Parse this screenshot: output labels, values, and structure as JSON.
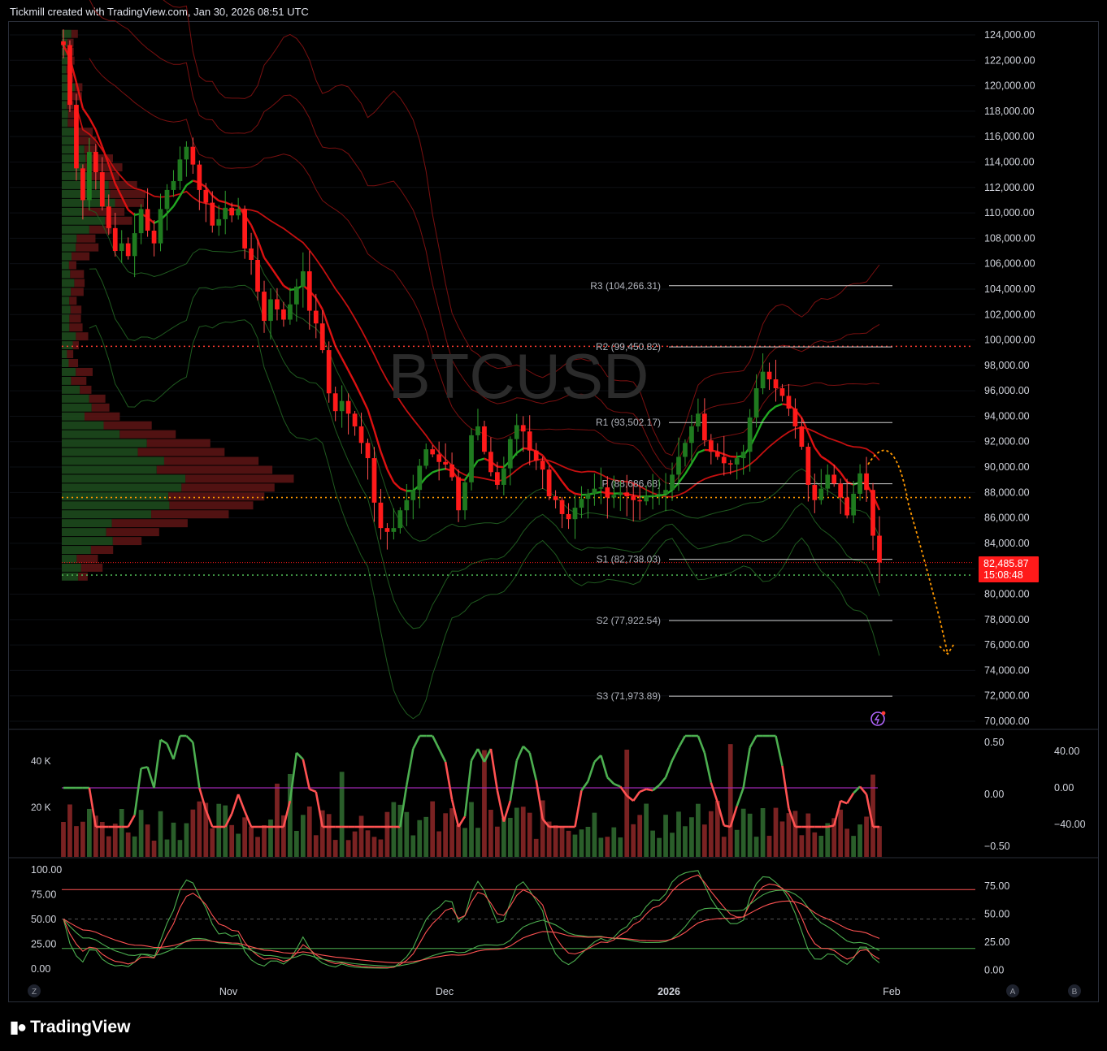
{
  "header": {
    "text": "Tickmill created with TradingView.com, Jan 30, 2026 08:51 UTC"
  },
  "footer": {
    "brand": "TradingView",
    "icon": "tradingview-logo-icon"
  },
  "watermark": "BTCUSD",
  "colors": {
    "up": "#1f7a1f",
    "down": "#ff1a1a",
    "background": "#000000",
    "grid": "#1e222d",
    "axis_text": "#d1d4dc",
    "pivot_line": "#cfcfcf",
    "resistance_dotted": "#ff3b30",
    "poc_dotted": "#ff9800",
    "support_dotted": "#4caf50",
    "forecast_arrow": "#ff9800"
  },
  "chart_data": [
    {
      "type": "candlestick",
      "symbol": "BTCUSD",
      "y_range": [
        69000,
        125500
      ],
      "y_ticks": [
        "124,000.00",
        "122,000.00",
        "120,000.00",
        "118,000.00",
        "116,000.00",
        "114,000.00",
        "112,000.00",
        "110,000.00",
        "108,000.00",
        "106,000.00",
        "104,000.00",
        "102,000.00",
        "100,000.00",
        "98,000.00",
        "96,000.00",
        "94,000.00",
        "92,000.00",
        "90,000.00",
        "88,000.00",
        "86,000.00",
        "84,000.00",
        "82,000.00",
        "80,000.00",
        "78,000.00",
        "76,000.00",
        "74,000.00",
        "72,000.00",
        "70,000.00"
      ],
      "x_labels": [
        "Nov",
        "Dec",
        "2026",
        "Feb"
      ],
      "last_price": {
        "value": "82,485.87",
        "countdown": "15:08:48"
      },
      "pivots": [
        {
          "label": "R3 (104,266.31)",
          "value": 104266.31
        },
        {
          "label": "R2 (99,450.82)",
          "value": 99450.82
        },
        {
          "label": "R1 (93,502.17)",
          "value": 93502.17
        },
        {
          "label": "P (88,686.68)",
          "value": 88686.68
        },
        {
          "label": "S1 (82,738.03)",
          "value": 82738.03
        },
        {
          "label": "S2 (77,922.54)",
          "value": 77922.54
        },
        {
          "label": "S3 (71,973.89)",
          "value": 71973.89
        }
      ],
      "horizontal_levels": [
        {
          "name": "resistance",
          "value": 99500
        },
        {
          "name": "volume-poc",
          "value": 87600
        },
        {
          "name": "support",
          "value": 81500
        }
      ],
      "closes": [
        123200,
        118500,
        113500,
        111000,
        114800,
        113200,
        110500,
        108800,
        107000,
        107600,
        106600,
        108400,
        110300,
        108600,
        107600,
        110300,
        111800,
        112500,
        114200,
        115200,
        113800,
        111800,
        110800,
        109000,
        109500,
        110400,
        109800,
        110300,
        107200,
        106300,
        103800,
        101500,
        103200,
        102400,
        101600,
        102800,
        104200,
        105400,
        102300,
        101300,
        99200,
        95800,
        94400,
        95200,
        94200,
        93200,
        91900,
        90700,
        87200,
        85200,
        84900,
        85200,
        86600,
        87400,
        88200,
        90100,
        91400,
        91000,
        90400,
        90200,
        89200,
        86600,
        88800,
        92500,
        93200,
        91200,
        89600,
        88600,
        89900,
        92200,
        93300,
        92800,
        91300,
        90500,
        89800,
        87700,
        87400,
        86300,
        85900,
        86800,
        87500,
        87900,
        88300,
        88400,
        87600,
        87800,
        88000,
        87700,
        87400,
        87300,
        87700,
        87800,
        87900,
        88200,
        89400,
        90800,
        91900,
        93200,
        94200,
        92100,
        91200,
        90800,
        90300,
        90200,
        90700,
        91200,
        93900,
        96200,
        97500,
        96900,
        96200,
        95600,
        94600,
        93200,
        91600,
        88600,
        87400,
        88300,
        89400,
        88700,
        87600,
        86200,
        87900,
        89500,
        88200,
        84600,
        82486
      ],
      "volume_pane": {
        "left_ticks": [
          "40 K",
          "20 K"
        ],
        "right_ticks_a": [
          "0.50",
          "0.00",
          "−0.50"
        ],
        "right_ticks_b": [
          "40.00",
          "0.00",
          "−40.00"
        ],
        "reference_level": 0.0
      },
      "stochastic_pane": {
        "left_ticks": [
          "100.00",
          "75.00",
          "50.00",
          "25.00",
          "0.00"
        ],
        "right_ticks": [
          "75.00",
          "50.00",
          "25.00",
          "0.00"
        ],
        "levels": [
          80,
          50,
          20
        ]
      },
      "axis_badges": [
        "Z",
        "A",
        "B"
      ]
    }
  ]
}
